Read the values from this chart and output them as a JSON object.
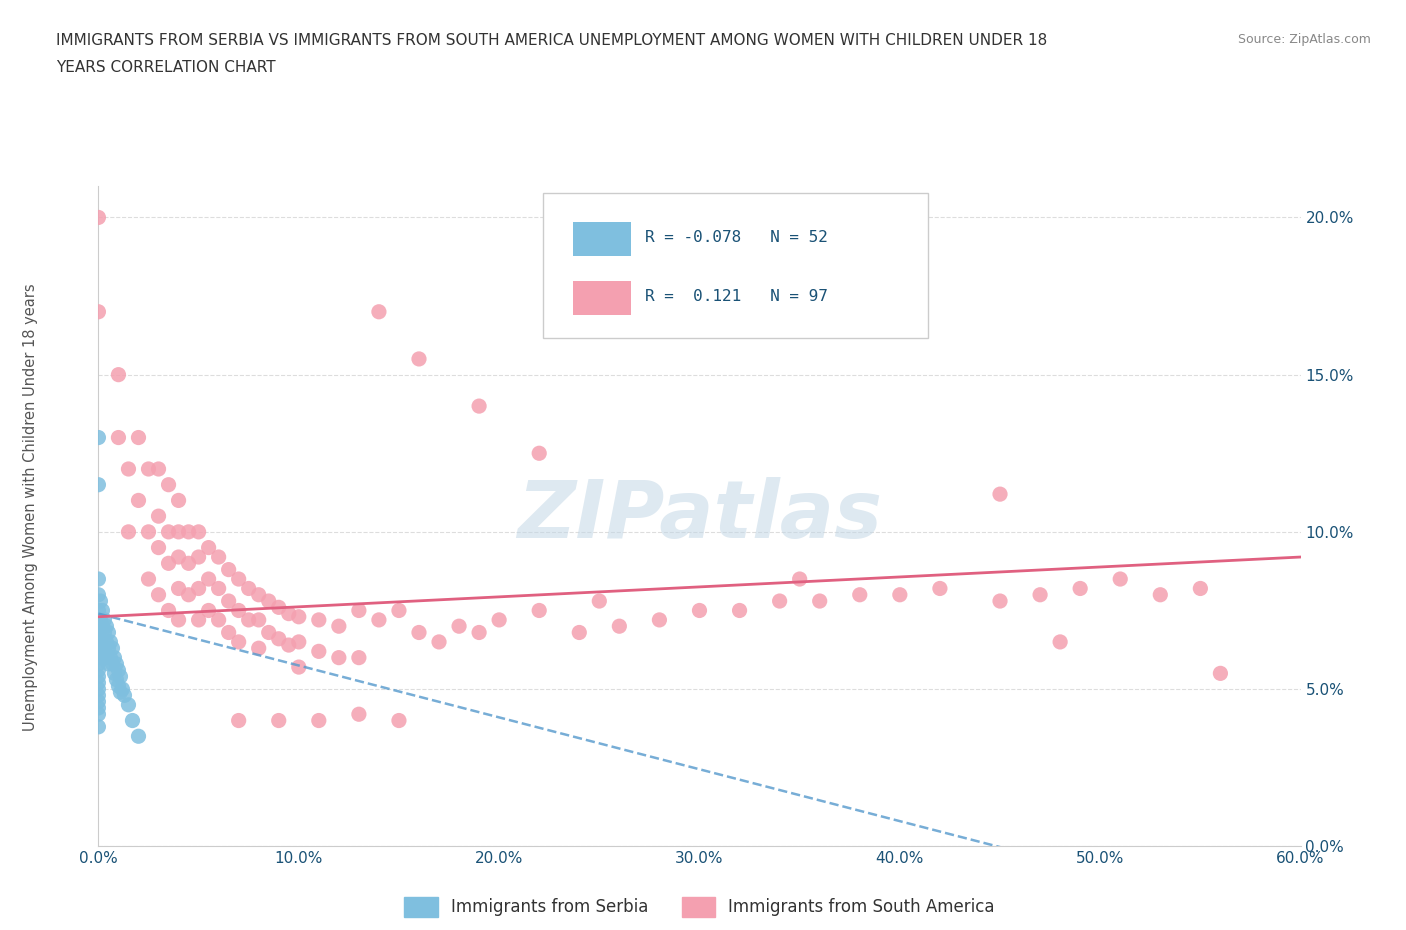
{
  "title_line1": "IMMIGRANTS FROM SERBIA VS IMMIGRANTS FROM SOUTH AMERICA UNEMPLOYMENT AMONG WOMEN WITH CHILDREN UNDER 18",
  "title_line2": "YEARS CORRELATION CHART",
  "source_text": "Source: ZipAtlas.com",
  "ylabel": "Unemployment Among Women with Children Under 18 years",
  "xlim": [
    0,
    0.6
  ],
  "ylim": [
    0,
    0.21
  ],
  "xticks": [
    0.0,
    0.1,
    0.2,
    0.3,
    0.4,
    0.5,
    0.6
  ],
  "xticklabels": [
    "0.0%",
    "10.0%",
    "20.0%",
    "30.0%",
    "40.0%",
    "50.0%",
    "60.0%"
  ],
  "yticks": [
    0.0,
    0.05,
    0.1,
    0.15,
    0.2
  ],
  "yticklabels": [
    "0.0%",
    "5.0%",
    "10.0%",
    "15.0%",
    "20.0%"
  ],
  "serbia_color": "#7fbfdf",
  "south_america_color": "#f4a0b0",
  "serbia_R": -0.078,
  "serbia_N": 52,
  "south_america_R": 0.121,
  "south_america_N": 97,
  "watermark": "ZIPatlas",
  "watermark_color_r": 195,
  "watermark_color_g": 215,
  "watermark_color_b": 230,
  "legend_serbia_label": "Immigrants from Serbia",
  "legend_sa_label": "Immigrants from South America",
  "grid_color": "#dddddd",
  "tick_label_color": "#1a5276",
  "title_color": "#333333",
  "serbia_trend_color": "#5599cc",
  "sa_trend_color": "#e06080"
}
